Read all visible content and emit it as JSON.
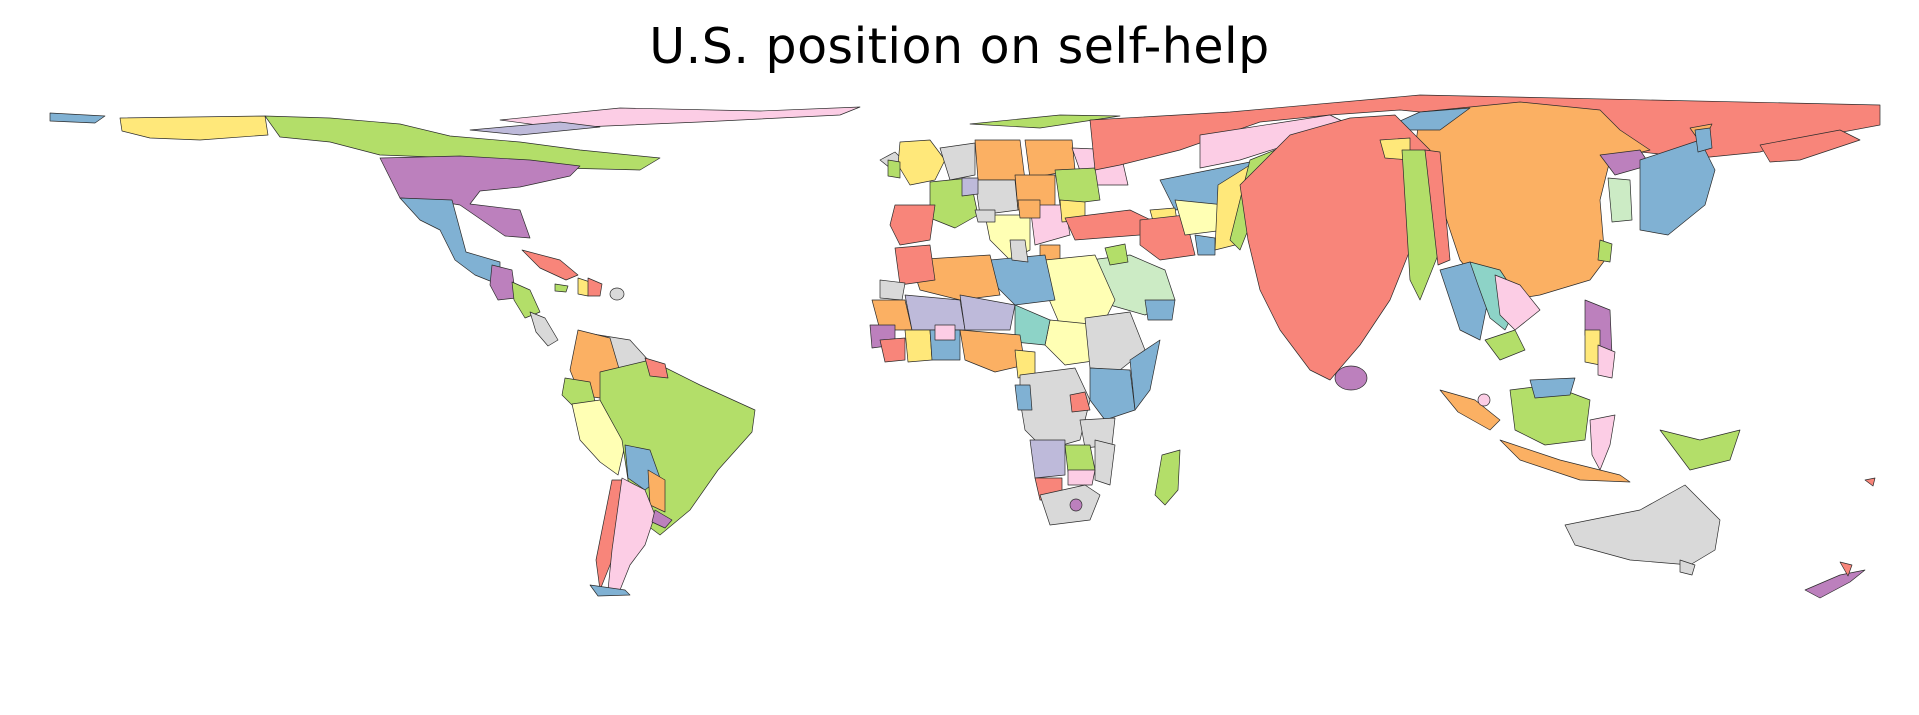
{
  "title": "U.S. position on self-help",
  "map": {
    "type": "cartogram",
    "palette": {
      "red": "#f8857a",
      "orange": "#fbb063",
      "yellow": "#ffe87a",
      "light_yellow": "#ffffb4",
      "green": "#b3de69",
      "light_green": "#ccebc5",
      "blue": "#80b1d3",
      "teal": "#8dd3c7",
      "purple": "#bc80bd",
      "lavender": "#bebada",
      "pink": "#fccde5",
      "grey": "#d9d9d9"
    }
  }
}
